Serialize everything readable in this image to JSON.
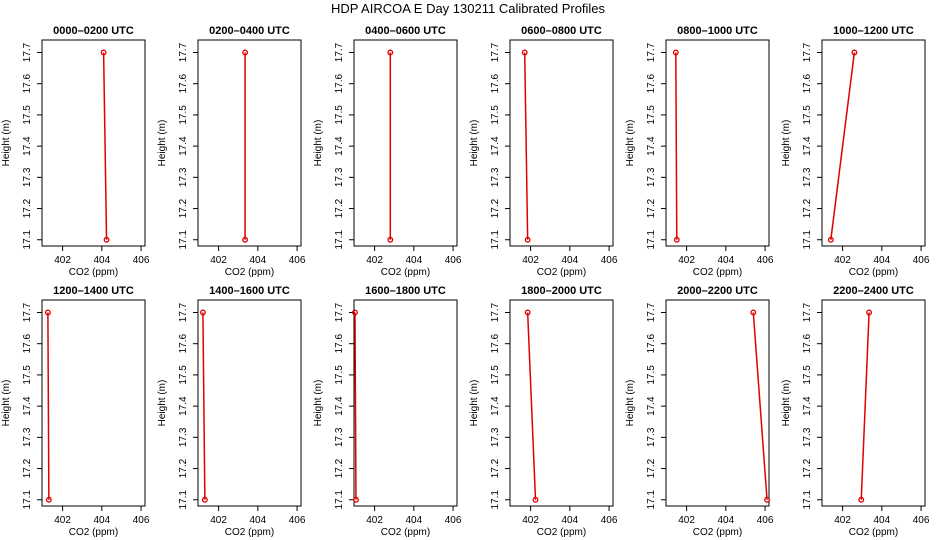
{
  "title": "HDP AIRCOA E  Day 130211  Calibrated Profiles",
  "chart_data": [
    {
      "type": "line",
      "title": "0000–0200 UTC",
      "xlabel": "CO2 (ppm)",
      "ylabel": "Height (m)",
      "color": "#e00000",
      "x": [
        404.24,
        404.09
      ],
      "y": [
        17.1,
        17.7
      ],
      "xlim": [
        400.95,
        406.2
      ],
      "ylim": [
        17.08,
        17.74
      ],
      "xticks": [
        402,
        404,
        406
      ],
      "yticks": [
        17.1,
        17.2,
        17.3,
        17.4,
        17.5,
        17.6,
        17.7
      ]
    },
    {
      "type": "line",
      "title": "0200–0400 UTC",
      "xlabel": "CO2 (ppm)",
      "ylabel": "Height (m)",
      "color": "#e00000",
      "x": [
        403.35,
        403.35
      ],
      "y": [
        17.1,
        17.7
      ],
      "xlim": [
        400.95,
        406.2
      ],
      "ylim": [
        17.08,
        17.74
      ],
      "xticks": [
        402,
        404,
        406
      ],
      "yticks": [
        17.1,
        17.2,
        17.3,
        17.4,
        17.5,
        17.6,
        17.7
      ]
    },
    {
      "type": "line",
      "title": "0400–0600 UTC",
      "xlabel": "CO2 (ppm)",
      "ylabel": "Height (m)",
      "color": "#e00000",
      "x": [
        402.8,
        402.8
      ],
      "y": [
        17.1,
        17.7
      ],
      "xlim": [
        400.95,
        406.2
      ],
      "ylim": [
        17.08,
        17.74
      ],
      "xticks": [
        402,
        404,
        406
      ],
      "yticks": [
        17.1,
        17.2,
        17.3,
        17.4,
        17.5,
        17.6,
        17.7
      ]
    },
    {
      "type": "line",
      "title": "0600–0800 UTC",
      "xlabel": "CO2 (ppm)",
      "ylabel": "Height (m)",
      "color": "#e00000",
      "x": [
        401.85,
        401.7
      ],
      "y": [
        17.1,
        17.7
      ],
      "xlim": [
        400.95,
        406.2
      ],
      "ylim": [
        17.08,
        17.74
      ],
      "xticks": [
        402,
        404,
        406
      ],
      "yticks": [
        17.1,
        17.2,
        17.3,
        17.4,
        17.5,
        17.6,
        17.7
      ]
    },
    {
      "type": "line",
      "title": "0800–1000 UTC",
      "xlabel": "CO2 (ppm)",
      "ylabel": "Height (m)",
      "color": "#e00000",
      "x": [
        401.5,
        401.45
      ],
      "y": [
        17.1,
        17.7
      ],
      "xlim": [
        400.95,
        406.2
      ],
      "ylim": [
        17.08,
        17.74
      ],
      "xticks": [
        402,
        404,
        406
      ],
      "yticks": [
        17.1,
        17.2,
        17.3,
        17.4,
        17.5,
        17.6,
        17.7
      ]
    },
    {
      "type": "line",
      "title": "1000–1200 UTC",
      "xlabel": "CO2 (ppm)",
      "ylabel": "Height (m)",
      "color": "#e00000",
      "x": [
        401.4,
        402.6
      ],
      "y": [
        17.1,
        17.7
      ],
      "xlim": [
        400.95,
        406.2
      ],
      "ylim": [
        17.08,
        17.74
      ],
      "xticks": [
        402,
        404,
        406
      ],
      "yticks": [
        17.1,
        17.2,
        17.3,
        17.4,
        17.5,
        17.6,
        17.7
      ]
    },
    {
      "type": "line",
      "title": "1200–1400 UTC",
      "xlabel": "CO2 (ppm)",
      "ylabel": "Height (m)",
      "color": "#e00000",
      "x": [
        401.3,
        401.25
      ],
      "y": [
        17.1,
        17.7
      ],
      "xlim": [
        400.95,
        406.2
      ],
      "ylim": [
        17.08,
        17.74
      ],
      "xticks": [
        402,
        404,
        406
      ],
      "yticks": [
        17.1,
        17.2,
        17.3,
        17.4,
        17.5,
        17.6,
        17.7
      ]
    },
    {
      "type": "line",
      "title": "1400–1600 UTC",
      "xlabel": "CO2 (ppm)",
      "ylabel": "Height (m)",
      "color": "#e00000",
      "x": [
        401.3,
        401.2
      ],
      "y": [
        17.1,
        17.7
      ],
      "xlim": [
        400.95,
        406.2
      ],
      "ylim": [
        17.08,
        17.74
      ],
      "xticks": [
        402,
        404,
        406
      ],
      "yticks": [
        17.1,
        17.2,
        17.3,
        17.4,
        17.5,
        17.6,
        17.7
      ]
    },
    {
      "type": "line",
      "title": "1600–1800 UTC",
      "xlabel": "CO2 (ppm)",
      "ylabel": "Height (m)",
      "color": "#e00000",
      "x": [
        401.05,
        401.0
      ],
      "y": [
        17.1,
        17.7
      ],
      "xlim": [
        400.95,
        406.2
      ],
      "ylim": [
        17.08,
        17.74
      ],
      "xticks": [
        402,
        404,
        406
      ],
      "yticks": [
        17.1,
        17.2,
        17.3,
        17.4,
        17.5,
        17.6,
        17.7
      ]
    },
    {
      "type": "line",
      "title": "1800–2000 UTC",
      "xlabel": "CO2 (ppm)",
      "ylabel": "Height (m)",
      "color": "#e00000",
      "x": [
        402.25,
        401.85
      ],
      "y": [
        17.1,
        17.7
      ],
      "xlim": [
        400.95,
        406.2
      ],
      "ylim": [
        17.08,
        17.74
      ],
      "xticks": [
        402,
        404,
        406
      ],
      "yticks": [
        17.1,
        17.2,
        17.3,
        17.4,
        17.5,
        17.6,
        17.7
      ]
    },
    {
      "type": "line",
      "title": "2000–2200 UTC",
      "xlabel": "CO2 (ppm)",
      "ylabel": "Height (m)",
      "color": "#e00000",
      "x": [
        406.1,
        405.4
      ],
      "y": [
        17.1,
        17.7
      ],
      "xlim": [
        400.95,
        406.2
      ],
      "ylim": [
        17.08,
        17.74
      ],
      "xticks": [
        402,
        404,
        406
      ],
      "yticks": [
        17.1,
        17.2,
        17.3,
        17.4,
        17.5,
        17.6,
        17.7
      ]
    },
    {
      "type": "line",
      "title": "2200–2400 UTC",
      "xlabel": "CO2 (ppm)",
      "ylabel": "Height (m)",
      "color": "#e00000",
      "x": [
        402.95,
        403.35
      ],
      "y": [
        17.1,
        17.7
      ],
      "xlim": [
        400.95,
        406.2
      ],
      "ylim": [
        17.08,
        17.74
      ],
      "xticks": [
        402,
        404,
        406
      ],
      "yticks": [
        17.1,
        17.2,
        17.3,
        17.4,
        17.5,
        17.6,
        17.7
      ]
    }
  ]
}
